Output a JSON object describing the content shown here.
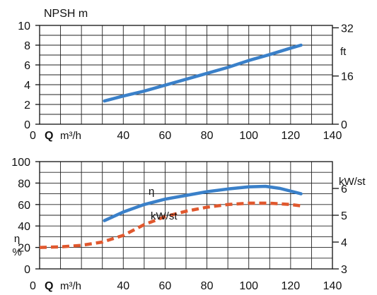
{
  "chart_data": [
    {
      "type": "line",
      "title": "NPSH m",
      "x": {
        "range": [
          0,
          140
        ],
        "ticks": [
          0,
          20,
          40,
          60,
          80,
          100,
          120,
          140
        ],
        "tick_labels": [
          "0",
          "",
          "40",
          "60",
          "80",
          "100",
          "120",
          "140"
        ],
        "symbol": "Q",
        "unit": "m³/h"
      },
      "y_left": {
        "range": [
          0,
          10
        ],
        "ticks": [
          0,
          2,
          4,
          6,
          8,
          10
        ],
        "tick_labels": [
          "0",
          "2",
          "4",
          "6",
          "8",
          "10"
        ]
      },
      "y_right": {
        "unit": "ft",
        "range": [
          0,
          32.8
        ],
        "ticks": [
          0,
          16,
          32
        ],
        "tick_labels": [
          "0",
          "16",
          "32"
        ]
      },
      "grid": true,
      "series": [
        {
          "color": "#3a80c9",
          "style": "solid",
          "axis": "left",
          "points": [
            [
              31,
              2.35
            ],
            [
              40,
              2.85
            ],
            [
              50,
              3.35
            ],
            [
              60,
              3.95
            ],
            [
              70,
              4.55
            ],
            [
              80,
              5.15
            ],
            [
              90,
              5.75
            ],
            [
              100,
              6.45
            ],
            [
              110,
              7.05
            ],
            [
              120,
              7.7
            ],
            [
              125,
              8.0
            ]
          ]
        }
      ]
    },
    {
      "type": "line",
      "x": {
        "range": [
          0,
          140
        ],
        "ticks": [
          0,
          20,
          40,
          60,
          80,
          100,
          120,
          140
        ],
        "tick_labels": [
          "0",
          "",
          "40",
          "60",
          "80",
          "100",
          "120",
          "140"
        ],
        "symbol": "Q",
        "unit": "m³/h"
      },
      "y_left": {
        "label": "η\n%",
        "range": [
          0,
          100
        ],
        "ticks": [
          0,
          20,
          40,
          60,
          80,
          100
        ],
        "tick_labels": [
          "0",
          "20",
          "40",
          "60",
          "80",
          "100"
        ]
      },
      "y_right": {
        "unit": "kW/st",
        "range": [
          3,
          7
        ],
        "ticks": [
          3,
          4,
          5,
          6
        ],
        "tick_labels": [
          "3",
          "4",
          "5",
          "6"
        ]
      },
      "grid": true,
      "series": [
        {
          "name": "η",
          "color": "#3a80c9",
          "style": "solid",
          "axis": "left",
          "points": [
            [
              31,
              45
            ],
            [
              40,
              53
            ],
            [
              50,
              60
            ],
            [
              60,
              65
            ],
            [
              70,
              68.5
            ],
            [
              80,
              72
            ],
            [
              90,
              74.5
            ],
            [
              100,
              76.5
            ],
            [
              108,
              77
            ],
            [
              115,
              75
            ],
            [
              125,
              70
            ]
          ]
        },
        {
          "name": "kW/st",
          "color": "#e0582e",
          "style": "dashed",
          "axis": "right",
          "points": [
            [
              0,
              3.8
            ],
            [
              10,
              3.82
            ],
            [
              20,
              3.88
            ],
            [
              30,
              4.0
            ],
            [
              40,
              4.25
            ],
            [
              50,
              4.65
            ],
            [
              60,
              4.95
            ],
            [
              70,
              5.15
            ],
            [
              80,
              5.3
            ],
            [
              90,
              5.4
            ],
            [
              100,
              5.45
            ],
            [
              110,
              5.45
            ],
            [
              120,
              5.4
            ],
            [
              125,
              5.35
            ]
          ]
        }
      ]
    }
  ]
}
